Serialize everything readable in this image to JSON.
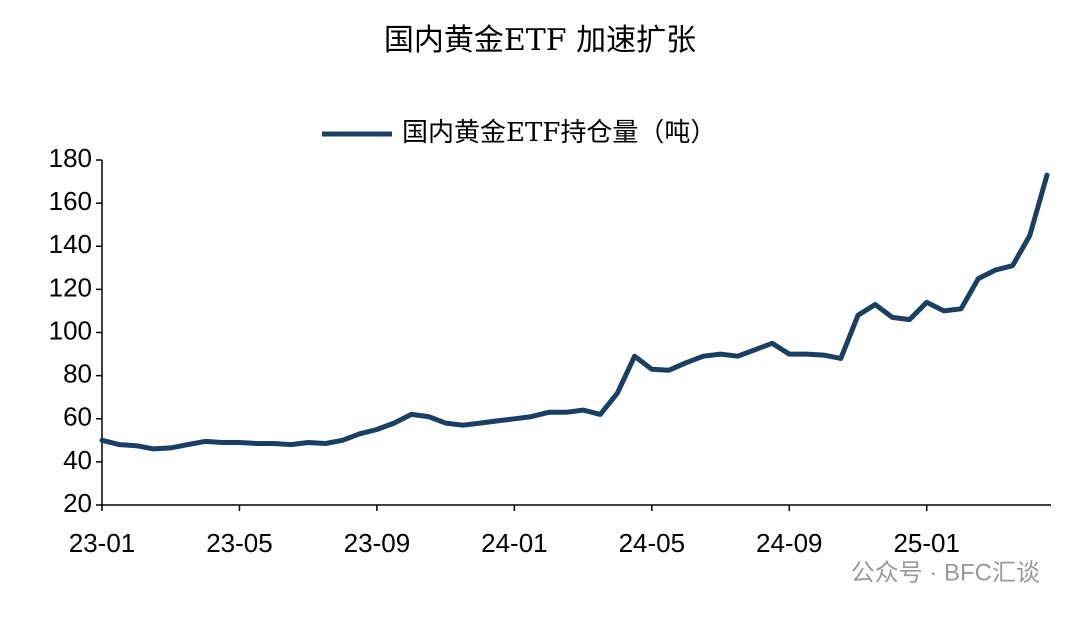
{
  "chart_data": {
    "type": "line",
    "title": "国内黄金ETF 加速扩张",
    "categories": [
      "23-01",
      null,
      null,
      null,
      null,
      null,
      null,
      null,
      "23-05",
      null,
      null,
      null,
      null,
      null,
      null,
      null,
      "23-09",
      null,
      null,
      null,
      null,
      null,
      null,
      null,
      "24-01",
      null,
      null,
      null,
      null,
      null,
      null,
      null,
      "24-05",
      null,
      null,
      null,
      null,
      null,
      null,
      null,
      "24-09",
      null,
      null,
      null,
      null,
      null,
      null,
      null,
      "25-01",
      null,
      null,
      null,
      null,
      null,
      null,
      null
    ],
    "series": [
      {
        "name": "国内黄金ETF持仓量（吨）",
        "color": "#1b3f63",
        "values": [
          50,
          48,
          47.5,
          46,
          46.5,
          48,
          49.5,
          49,
          49,
          48.5,
          48.5,
          48,
          49,
          48.5,
          50,
          53,
          55,
          58,
          62,
          61,
          58,
          57,
          58,
          59,
          60,
          61,
          63,
          63,
          64,
          62,
          72,
          89,
          83,
          82.5,
          86,
          89,
          90,
          89,
          92,
          95,
          90,
          90,
          89.5,
          88,
          108,
          113,
          107,
          106,
          114,
          110,
          111,
          125,
          129,
          131,
          145,
          173
        ]
      }
    ],
    "ylim": [
      20,
      180
    ],
    "yticks": [
      20,
      40,
      60,
      80,
      100,
      120,
      140,
      160,
      180
    ],
    "legend": "top",
    "watermark": "公众号 · BFC汇谈"
  }
}
